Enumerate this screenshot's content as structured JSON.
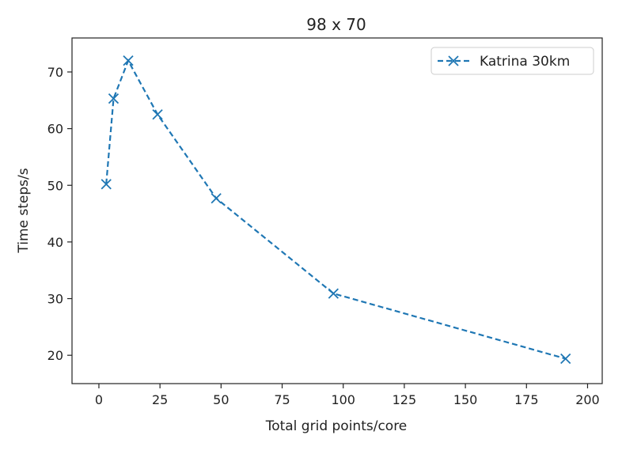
{
  "chart_data": {
    "type": "line",
    "title": "98 x 70",
    "xlabel": "Total grid points/core",
    "ylabel": "Time steps/s",
    "xlim": [
      -11,
      206
    ],
    "ylim": [
      15,
      76
    ],
    "xticks": [
      0,
      25,
      50,
      75,
      100,
      125,
      150,
      175,
      200
    ],
    "yticks": [
      20,
      30,
      40,
      50,
      60,
      70
    ],
    "grid": false,
    "legend_position": "top-right",
    "series": [
      {
        "name": "Katrina 30km",
        "color": "#1f77b4",
        "line_style": "dashed",
        "marker": "x",
        "x": [
          3,
          6,
          12,
          24,
          48,
          96,
          191
        ],
        "y": [
          50.2,
          65.3,
          72.0,
          62.5,
          47.7,
          30.9,
          19.4
        ]
      }
    ]
  }
}
